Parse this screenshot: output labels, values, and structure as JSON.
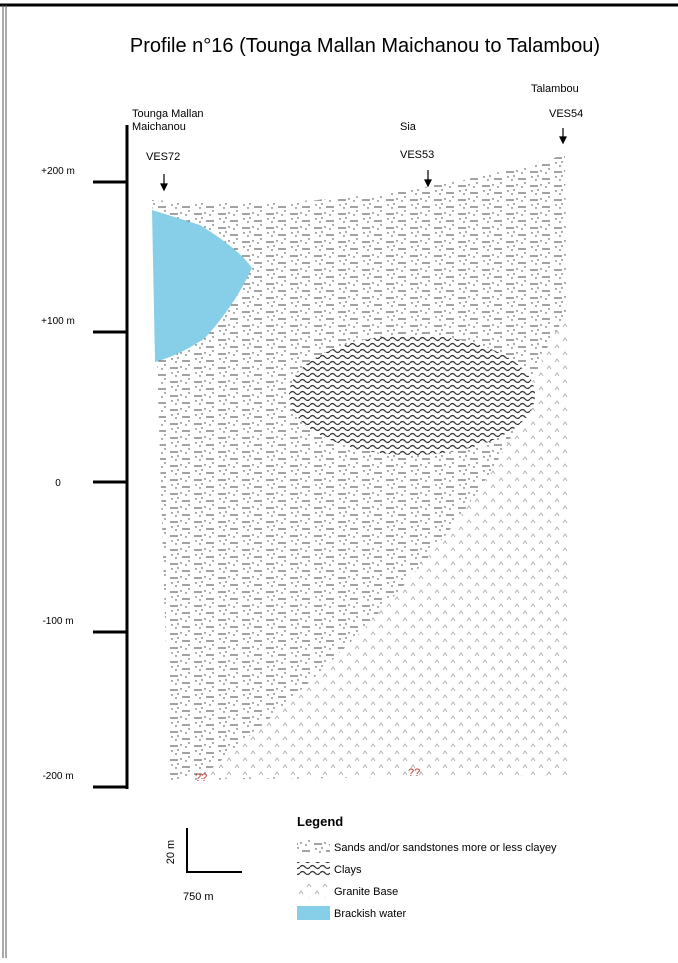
{
  "header": {
    "title": "Profile n°16 (Tounga Mallan Maichanou to Talambou)"
  },
  "axis": {
    "labels": [
      "+200 m",
      "+100 m",
      "0",
      "-100 m",
      "-200 m"
    ]
  },
  "locations": [
    {
      "name": [
        "Tounga Mallan",
        "Maichanou"
      ],
      "ves": "VES72"
    },
    {
      "name": [
        "Sia"
      ],
      "ves": "VES53"
    },
    {
      "name": [
        "Talambou"
      ],
      "ves": "VES54"
    }
  ],
  "unknowns": [
    "??",
    "??"
  ],
  "legend": {
    "title": "Legend",
    "items": [
      "Sands and/or sandstones more or less clayey",
      "Clays",
      "Granite Base",
      "Brackish water"
    ]
  },
  "scale": {
    "vertical": "20 m",
    "horizontal": "750 m"
  }
}
